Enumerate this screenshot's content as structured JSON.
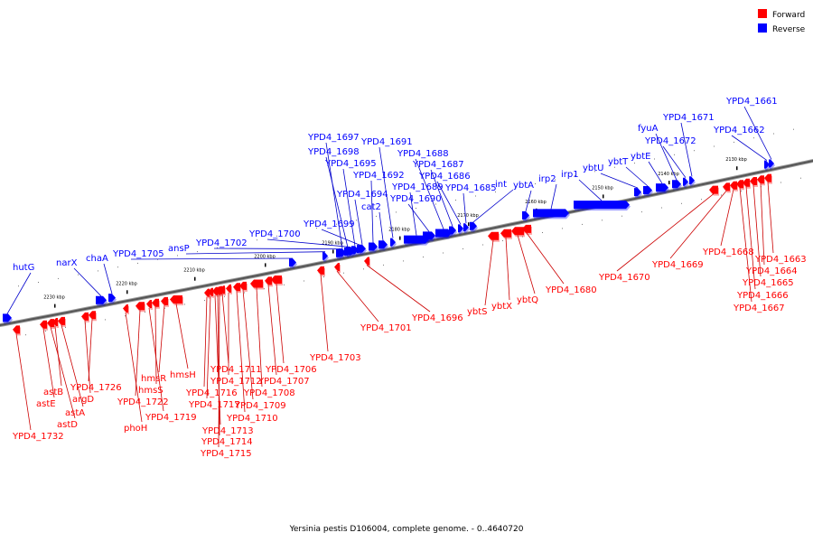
{
  "title": "Yersinia pestis D106004, complete genome. - 0..4640720",
  "legend": [
    {
      "label": "Forward",
      "color": "#ff0000"
    },
    {
      "label": "Reverse",
      "color": "#0000ff"
    }
  ],
  "colors": {
    "forward": "#ff0000",
    "reverse": "#0000ff",
    "fwd_line": "#cc0000",
    "rev_line": "#0000cc",
    "backbone": "#555555"
  },
  "scale_ticks": [
    "2230 kbp",
    "2220 kbp",
    "2210 kbp",
    "2200 kbp",
    "2190 kbp",
    "2180 kbp",
    "2170 kbp",
    "2160 kbp",
    "2150 kbp",
    "2140 kbp",
    "2130 kbp"
  ],
  "genes": [
    {
      "label": "hutG",
      "strand": "reverse"
    },
    {
      "label": "narX",
      "strand": "reverse"
    },
    {
      "label": "chaA",
      "strand": "reverse"
    },
    {
      "label": "YPD4_1705",
      "strand": "reverse"
    },
    {
      "label": "ansP",
      "strand": "reverse"
    },
    {
      "label": "YPD4_1702",
      "strand": "reverse"
    },
    {
      "label": "YPD4_1700",
      "strand": "reverse"
    },
    {
      "label": "YPD4_1699",
      "strand": "reverse"
    },
    {
      "label": "YPD4_1697",
      "strand": "reverse"
    },
    {
      "label": "YPD4_1698",
      "strand": "reverse"
    },
    {
      "label": "YPD4_1695",
      "strand": "reverse"
    },
    {
      "label": "YPD4_1694",
      "strand": "reverse"
    },
    {
      "label": "YPD4_1692",
      "strand": "reverse"
    },
    {
      "label": "cat2",
      "strand": "reverse"
    },
    {
      "label": "YPD4_1691",
      "strand": "reverse"
    },
    {
      "label": "YPD4_1689",
      "strand": "reverse"
    },
    {
      "label": "YPD4_1690",
      "strand": "reverse"
    },
    {
      "label": "YPD4_1688",
      "strand": "reverse"
    },
    {
      "label": "YPD4_1687",
      "strand": "reverse"
    },
    {
      "label": "YPD4_1686",
      "strand": "reverse"
    },
    {
      "label": "YPD4_1685",
      "strand": "reverse"
    },
    {
      "label": "int",
      "strand": "reverse"
    },
    {
      "label": "ybtA",
      "strand": "reverse"
    },
    {
      "label": "irp2",
      "strand": "reverse"
    },
    {
      "label": "irp1",
      "strand": "reverse"
    },
    {
      "label": "ybtU",
      "strand": "reverse"
    },
    {
      "label": "ybtT",
      "strand": "reverse"
    },
    {
      "label": "ybtE",
      "strand": "reverse"
    },
    {
      "label": "fyuA",
      "strand": "reverse"
    },
    {
      "label": "YPD4_1672",
      "strand": "reverse"
    },
    {
      "label": "YPD4_1671",
      "strand": "reverse"
    },
    {
      "label": "YPD4_1662",
      "strand": "reverse"
    },
    {
      "label": "YPD4_1661",
      "strand": "reverse"
    },
    {
      "label": "astB",
      "strand": "forward"
    },
    {
      "label": "astE",
      "strand": "forward"
    },
    {
      "label": "argD",
      "strand": "forward"
    },
    {
      "label": "astA",
      "strand": "forward"
    },
    {
      "label": "astD",
      "strand": "forward"
    },
    {
      "label": "YPD4_1726",
      "strand": "forward"
    },
    {
      "label": "YPD4_1732",
      "strand": "forward"
    },
    {
      "label": "hmsR",
      "strand": "forward"
    },
    {
      "label": "hmsS",
      "strand": "forward"
    },
    {
      "label": "YPD4_1722",
      "strand": "forward"
    },
    {
      "label": "phoH",
      "strand": "forward"
    },
    {
      "label": "YPD4_1719",
      "strand": "forward"
    },
    {
      "label": "hmsH",
      "strand": "forward"
    },
    {
      "label": "YPD4_1711",
      "strand": "forward"
    },
    {
      "label": "YPD4_1712",
      "strand": "forward"
    },
    {
      "label": "YPD4_1716",
      "strand": "forward"
    },
    {
      "label": "YPD4_1717",
      "strand": "forward"
    },
    {
      "label": "YPD4_1713",
      "strand": "forward"
    },
    {
      "label": "YPD4_1714",
      "strand": "forward"
    },
    {
      "label": "YPD4_1715",
      "strand": "forward"
    },
    {
      "label": "YPD4_1706",
      "strand": "forward"
    },
    {
      "label": "YPD4_1707",
      "strand": "forward"
    },
    {
      "label": "YPD4_1708",
      "strand": "forward"
    },
    {
      "label": "YPD4_1709",
      "strand": "forward"
    },
    {
      "label": "YPD4_1710",
      "strand": "forward"
    },
    {
      "label": "YPD4_1703",
      "strand": "forward"
    },
    {
      "label": "YPD4_1701",
      "strand": "forward"
    },
    {
      "label": "YPD4_1696",
      "strand": "forward"
    },
    {
      "label": "ybtS",
      "strand": "forward"
    },
    {
      "label": "ybtX",
      "strand": "forward"
    },
    {
      "label": "ybtQ",
      "strand": "forward"
    },
    {
      "label": "YPD4_1680",
      "strand": "forward"
    },
    {
      "label": "YPD4_1670",
      "strand": "forward"
    },
    {
      "label": "YPD4_1669",
      "strand": "forward"
    },
    {
      "label": "YPD4_1668",
      "strand": "forward"
    },
    {
      "label": "YPD4_1663",
      "strand": "forward"
    },
    {
      "label": "YPD4_1664",
      "strand": "forward"
    },
    {
      "label": "YPD4_1665",
      "strand": "forward"
    },
    {
      "label": "YPD4_1666",
      "strand": "forward"
    },
    {
      "label": "YPD4_1667",
      "strand": "forward"
    }
  ]
}
